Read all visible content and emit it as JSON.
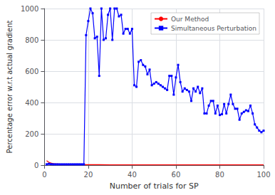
{
  "chart_data": {
    "type": "line",
    "xlabel": "Number of trials for SP",
    "ylabel": "Percentage error w.r.t actual gradient",
    "xlim": [
      0,
      100
    ],
    "ylim": [
      0,
      1000
    ],
    "xticks": [
      0,
      20,
      40,
      60,
      80,
      100
    ],
    "yticks": [
      0,
      200,
      400,
      600,
      800,
      1000
    ],
    "grid": true,
    "legend": "upper right",
    "series": [
      {
        "name": "Our Method",
        "color": "#ff0000",
        "marker": "none",
        "x": [
          1,
          2,
          3,
          4,
          5,
          6,
          7,
          8,
          9,
          10,
          11,
          12,
          13,
          14,
          15,
          16,
          17,
          18,
          19,
          20,
          25,
          30,
          35,
          40,
          45,
          50,
          55,
          60,
          65,
          70,
          75,
          80,
          85,
          90,
          95,
          100
        ],
        "values": [
          28,
          18,
          13,
          10,
          8,
          7,
          6,
          5,
          5,
          4,
          4,
          4,
          3,
          3,
          3,
          3,
          3,
          3,
          3,
          3,
          3,
          2,
          2,
          2,
          2,
          2,
          2,
          2,
          2,
          2,
          2,
          2,
          2,
          2,
          2,
          2
        ]
      },
      {
        "name": "Simultaneous Perturbation",
        "color": "#0000ff",
        "marker": "square",
        "x": [
          1,
          2,
          3,
          4,
          5,
          6,
          7,
          8,
          9,
          10,
          11,
          12,
          13,
          14,
          15,
          16,
          17,
          18,
          19,
          20,
          21,
          22,
          23,
          24,
          25,
          26,
          27,
          28,
          29,
          30,
          31,
          32,
          33,
          34,
          35,
          36,
          37,
          38,
          39,
          40,
          41,
          42,
          43,
          44,
          45,
          46,
          47,
          48,
          49,
          50,
          51,
          52,
          53,
          54,
          55,
          56,
          57,
          58,
          59,
          60,
          61,
          62,
          63,
          64,
          65,
          66,
          67,
          68,
          69,
          70,
          71,
          72,
          73,
          74,
          75,
          76,
          77,
          78,
          79,
          80,
          81,
          82,
          83,
          84,
          85,
          86,
          87,
          88,
          89,
          90,
          91,
          92,
          93,
          94,
          95,
          96,
          97,
          98,
          99,
          100
        ],
        "values": [
          5,
          8,
          6,
          5,
          5,
          5,
          5,
          5,
          5,
          5,
          5,
          5,
          5,
          5,
          5,
          5,
          5,
          5,
          830,
          920,
          1000,
          970,
          810,
          820,
          570,
          1000,
          800,
          810,
          960,
          1000,
          800,
          1000,
          1000,
          950,
          960,
          840,
          870,
          870,
          840,
          870,
          510,
          500,
          660,
          670,
          640,
          630,
          580,
          610,
          510,
          520,
          530,
          520,
          510,
          500,
          490,
          480,
          570,
          570,
          450,
          560,
          640,
          530,
          470,
          490,
          480,
          470,
          410,
          490,
          470,
          500,
          460,
          490,
          330,
          330,
          380,
          410,
          410,
          330,
          380,
          320,
          325,
          390,
          330,
          390,
          450,
          390,
          360,
          360,
          290,
          330,
          340,
          350,
          345,
          380,
          330,
          260,
          240,
          220,
          210,
          220
        ]
      }
    ]
  }
}
